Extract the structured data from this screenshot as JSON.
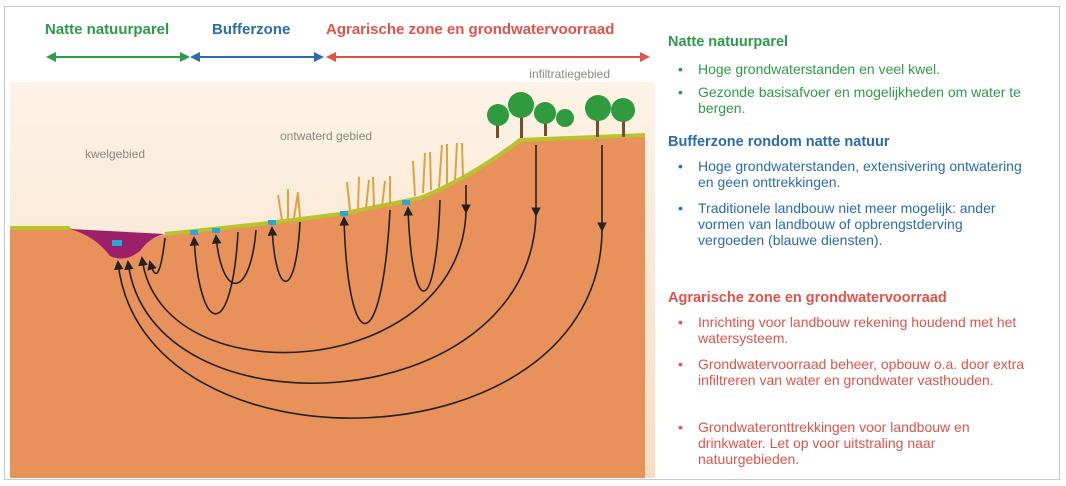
{
  "zones": [
    {
      "label": "Natte natuurparel"
    },
    {
      "label": "Bufferzone"
    },
    {
      "label": "Agrarische zone en grondwatervoorraad"
    }
  ],
  "section_labels": {
    "infiltration": "infiltratiegebied",
    "seepage": "kwelgebied",
    "drained": "ontwaterd gebied"
  },
  "legend": [
    {
      "heading": "Natte natuurparel",
      "items": [
        "Hoge grondwaterstanden en veel kwel.",
        "Gezonde basisafvoer en mogelijkheden om water te bergen."
      ]
    },
    {
      "heading": "Bufferzone rondom natte natuur",
      "items": [
        "Hoge grondwaterstanden, extensivering ontwatering en geen onttrekkingen.",
        "Traditionele landbouw niet meer mogelijk: ander vormen van landbouw of opbrengstderving vergoeden (blauwe diensten)."
      ]
    },
    {
      "heading": "Agrarische zone en grondwatervoorraad",
      "items": [
        "Inrichting voor landbouw rekening houdend met het watersysteem.",
        "Grondwatervoorraad beheer, opbouw o.a. door extra infiltreren van water en grondwater vasthouden.",
        "Grondwateronttrekkingen voor landbouw en drinkwater. Let op voor uitstraling naar natuurgebieden."
      ]
    }
  ]
}
